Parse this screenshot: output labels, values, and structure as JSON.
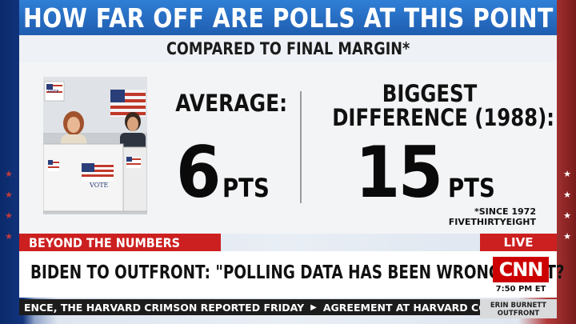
{
  "banner": {
    "title": "HOW FAR OFF ARE POLLS AT THIS POINT",
    "subtitle": "COMPARED TO FINAL MARGIN*"
  },
  "stats": {
    "average_label": "AVERAGE:",
    "average_value": "6",
    "average_unit": "PTS",
    "biggest_label_line1": "BIGGEST",
    "biggest_label_line2": "DIFFERENCE (1988):",
    "biggest_value": "15",
    "biggest_unit": "PTS",
    "footnote_line1": "*SINCE 1972",
    "footnote_line2": "FIVETHIRTYEIGHT"
  },
  "photo": {
    "booth_sign_1": "VOTE",
    "booth_sign_2": "VOTE"
  },
  "lower_third": {
    "section": "BEYOND THE NUMBERS",
    "live": "LIVE",
    "headline": "BIDEN TO OUTFRONT: \"POLLING DATA HAS BEEN WRONG\". IS IT?",
    "network_logo": "CNN",
    "time": "7:50 PM ET"
  },
  "ticker": {
    "item1": "ENCE, THE HARVARD CRIMSON REPORTED FRIDAY",
    "item2": "AGREEMENT AT HARVARD COMES",
    "show_line1": "ERIN BURNETT",
    "show_line2": "OUTFRONT"
  },
  "colors": {
    "banner_blue": "#1f5db0",
    "cnn_red": "#cc0000",
    "tag_red": "#cc1f1f"
  }
}
